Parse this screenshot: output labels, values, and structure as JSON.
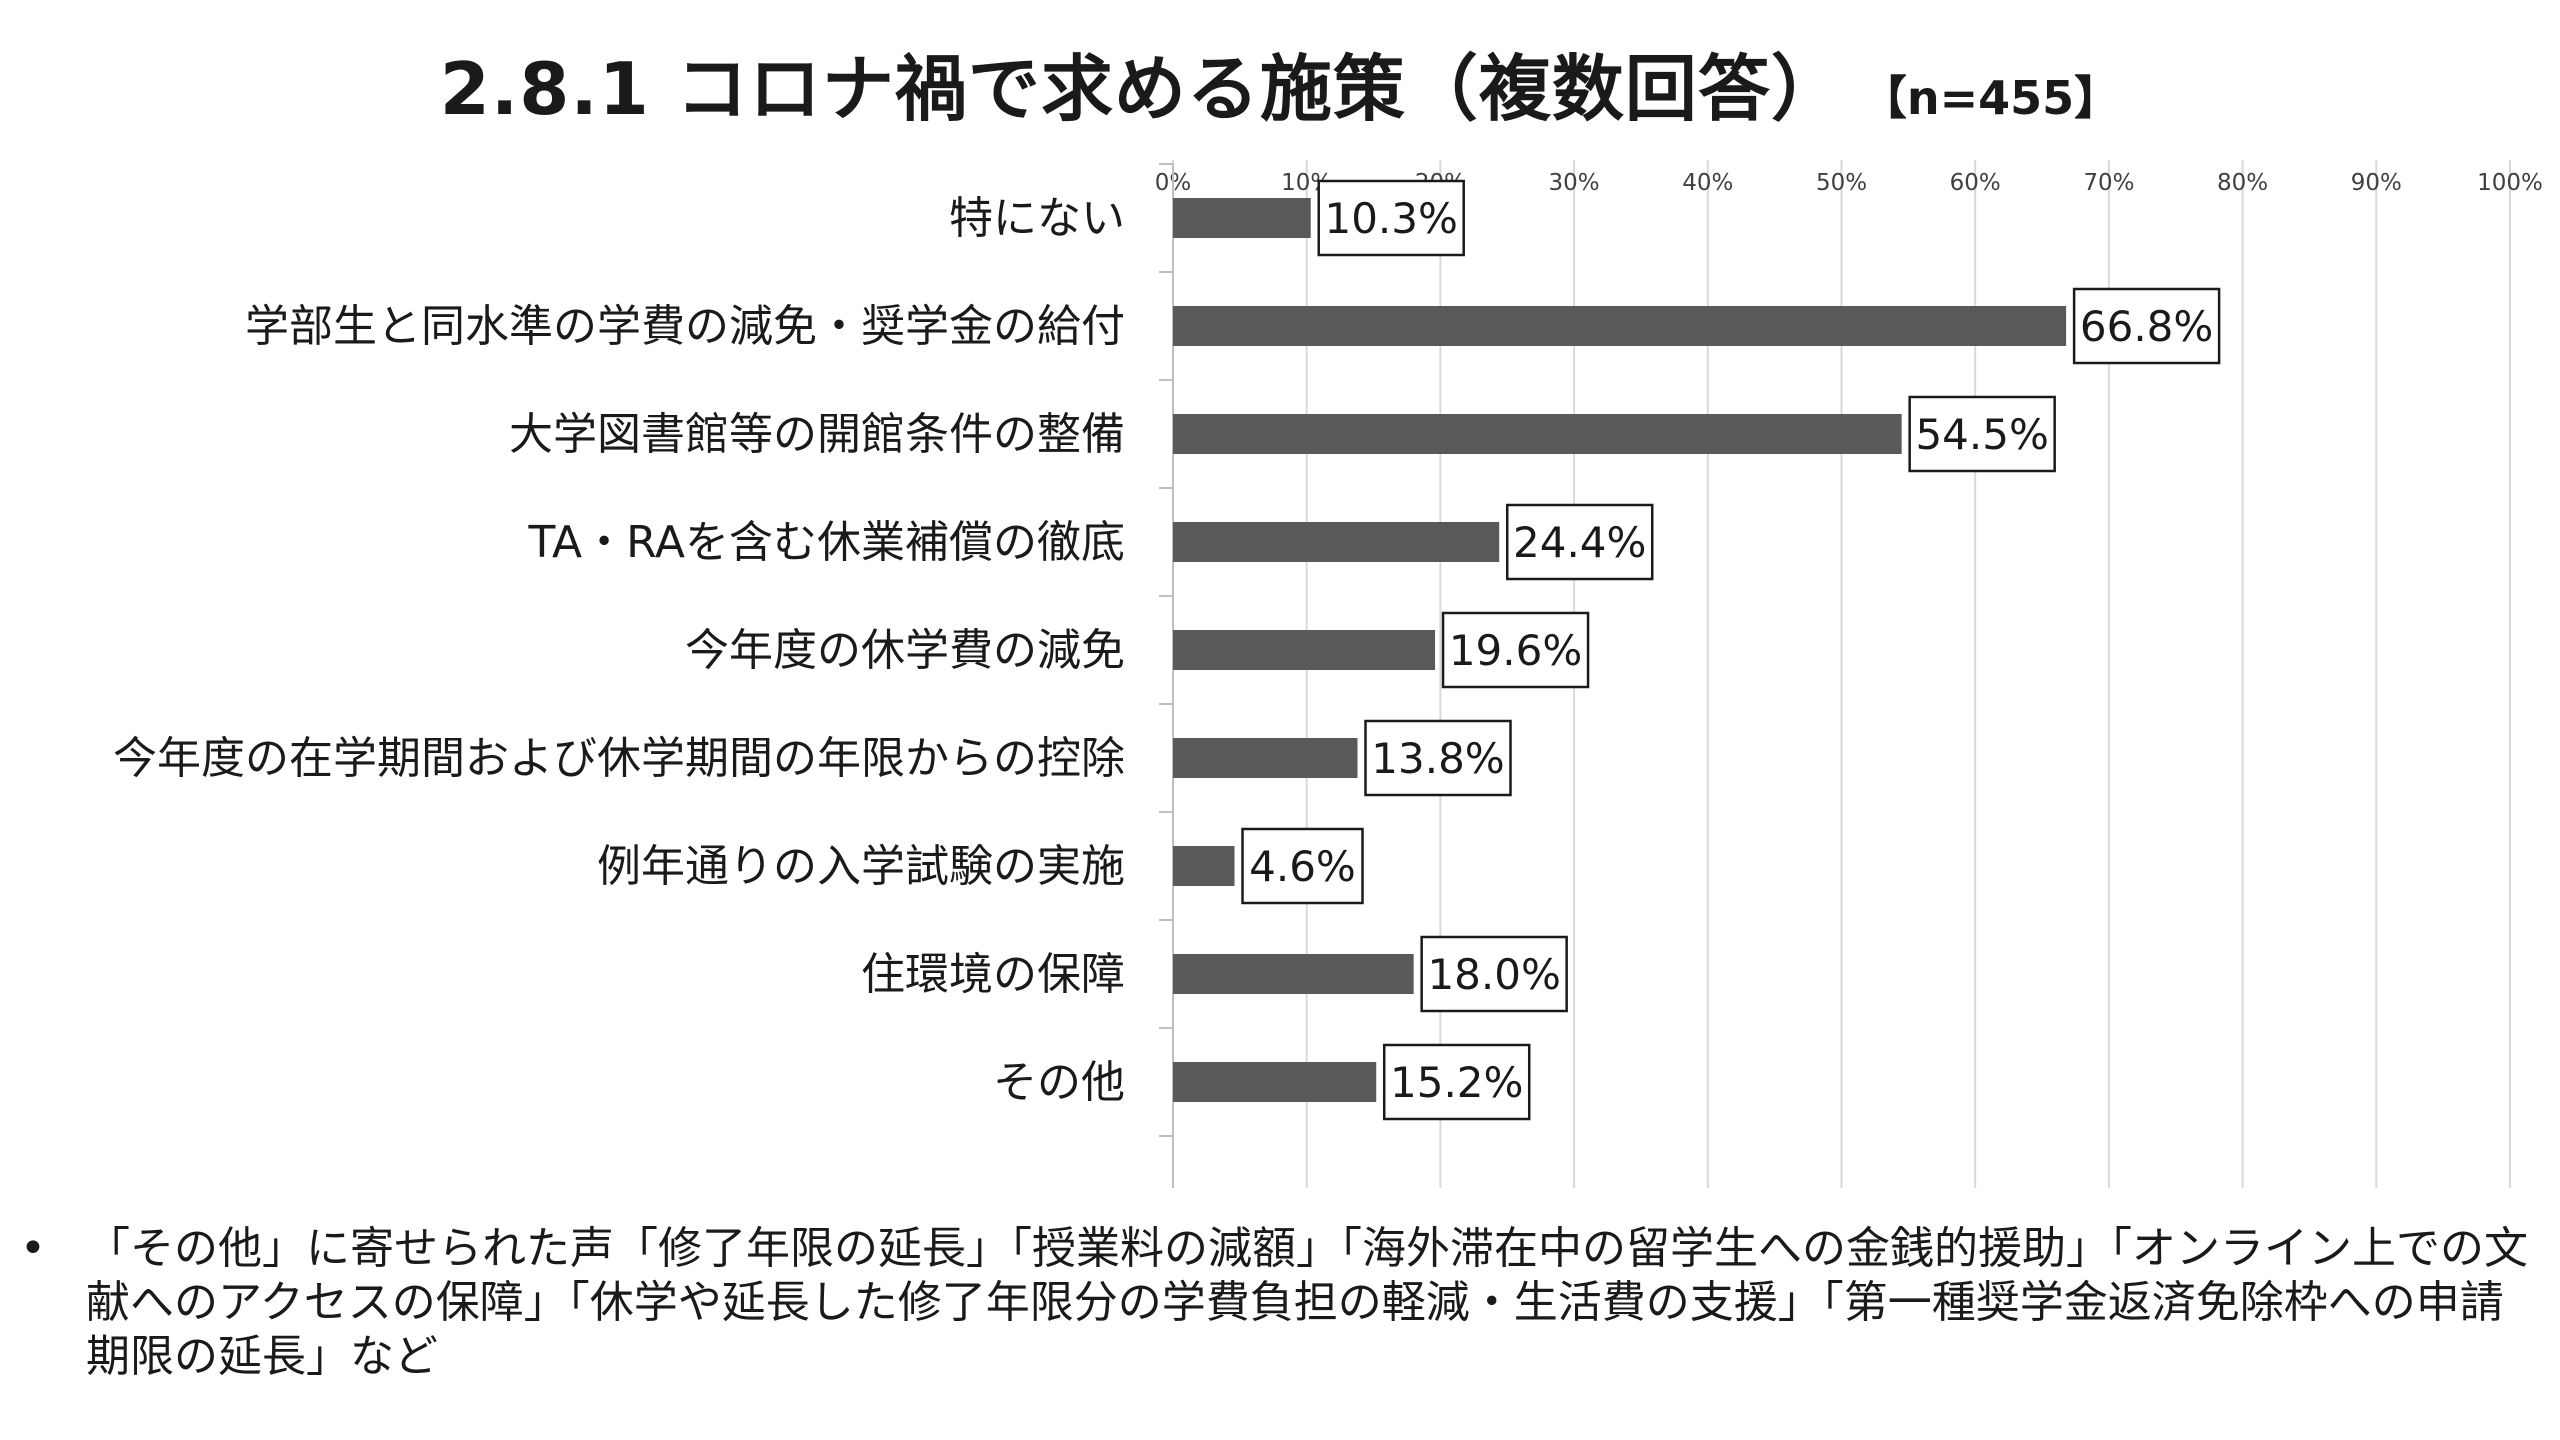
{
  "title": "2.8.1 コロナ禍で求める施策（複数回答）",
  "sample_size": "【n=455】",
  "chart_data": {
    "type": "bar",
    "orientation": "horizontal",
    "categories": [
      "特にない",
      "学部生と同水準の学費の減免・奨学金の給付",
      "大学図書館等の開館条件の整備",
      "TA・RAを含む休業補償の徹底",
      "今年度の休学費の減免",
      "今年度の在学期間および休学期間の年限からの控除",
      "例年通りの入学試験の実施",
      "住環境の保障",
      "その他"
    ],
    "values": [
      10.3,
      66.8,
      54.5,
      24.4,
      19.6,
      13.8,
      4.6,
      18.0,
      15.2
    ],
    "data_labels": [
      "10.3%",
      "66.8%",
      "54.5%",
      "24.4%",
      "19.6%",
      "13.8%",
      "4.6%",
      "18.0%",
      "15.2%"
    ],
    "x_ticks": [
      "0%",
      "10%",
      "20%",
      "30%",
      "40%",
      "50%",
      "60%",
      "70%",
      "80%",
      "90%",
      "100%"
    ],
    "xlim": [
      0,
      100
    ],
    "x_axis_position": "top",
    "grid": true,
    "bar_color": "#595959",
    "gridline_color": "#d9d9d9"
  },
  "note": {
    "bullet": "•",
    "text": "「その他」に寄せられた声「修了年限の延長」「授業料の減額」「海外滞在中の留学生への金銭的援助」「オンライン上での文献へのアクセスの保障」「休学や延長した修了年限分の学費負担の軽減・生活費の支援」「第一種奨学金返済免除枠への申請期限の延長」など"
  }
}
